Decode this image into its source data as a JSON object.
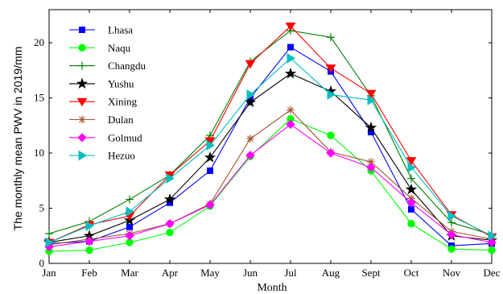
{
  "chart_data": {
    "type": "line",
    "xlabel": "Month",
    "ylabel": "The monthly mean PWV in 2019/mm",
    "categories": [
      "Jan",
      "Feb",
      "Mar",
      "Apr",
      "May",
      "Jun",
      "Jul",
      "Aug",
      "Sept",
      "Oct",
      "Nov",
      "Dec"
    ],
    "ylim": [
      0,
      23
    ],
    "yticks": [
      0,
      5,
      10,
      15,
      20
    ],
    "grid": false,
    "legend": "top-left",
    "series": [
      {
        "name": "Lhasa",
        "color": "#0000FF",
        "marker": "square",
        "values": [
          1.8,
          2.0,
          3.3,
          5.5,
          8.4,
          15.0,
          19.6,
          17.4,
          11.9,
          4.9,
          1.6,
          1.8
        ]
      },
      {
        "name": "Naqu",
        "color": "#00FF00",
        "marker": "circle",
        "values": [
          1.1,
          1.2,
          1.9,
          2.8,
          5.2,
          9.7,
          13.1,
          11.6,
          8.4,
          3.6,
          1.3,
          1.2
        ]
      },
      {
        "name": "Changdu",
        "color": "#008000",
        "marker": "plus",
        "values": [
          2.7,
          3.8,
          5.8,
          8.0,
          11.6,
          18.3,
          21.1,
          20.5,
          15.2,
          7.7,
          3.7,
          2.6
        ]
      },
      {
        "name": "Yushu",
        "color": "#000000",
        "marker": "star",
        "values": [
          1.9,
          2.5,
          3.9,
          5.8,
          9.6,
          14.6,
          17.2,
          15.6,
          12.3,
          6.7,
          2.5,
          2.1
        ]
      },
      {
        "name": "Xining",
        "color": "#FF0000",
        "marker": "triangle-down",
        "values": [
          1.9,
          3.5,
          4.3,
          8.0,
          11.1,
          18.1,
          21.5,
          17.7,
          15.4,
          9.3,
          4.4,
          2.4
        ]
      },
      {
        "name": "Dulan",
        "color": "#A0522D",
        "marker": "asterisk",
        "values": [
          1.7,
          2.2,
          2.7,
          3.6,
          5.4,
          11.3,
          13.9,
          10.1,
          9.2,
          5.9,
          2.9,
          2.2
        ]
      },
      {
        "name": "Golmud",
        "color": "#FF00FF",
        "marker": "diamond",
        "values": [
          1.5,
          2.0,
          2.5,
          3.6,
          5.3,
          9.8,
          12.6,
          10.0,
          8.7,
          5.5,
          2.6,
          1.9
        ]
      },
      {
        "name": "Hezuo",
        "color": "#00BFBF",
        "marker": "triangle-right",
        "values": [
          1.9,
          3.4,
          4.7,
          7.7,
          10.7,
          15.3,
          18.6,
          15.3,
          14.8,
          8.7,
          4.3,
          2.5
        ]
      }
    ]
  }
}
